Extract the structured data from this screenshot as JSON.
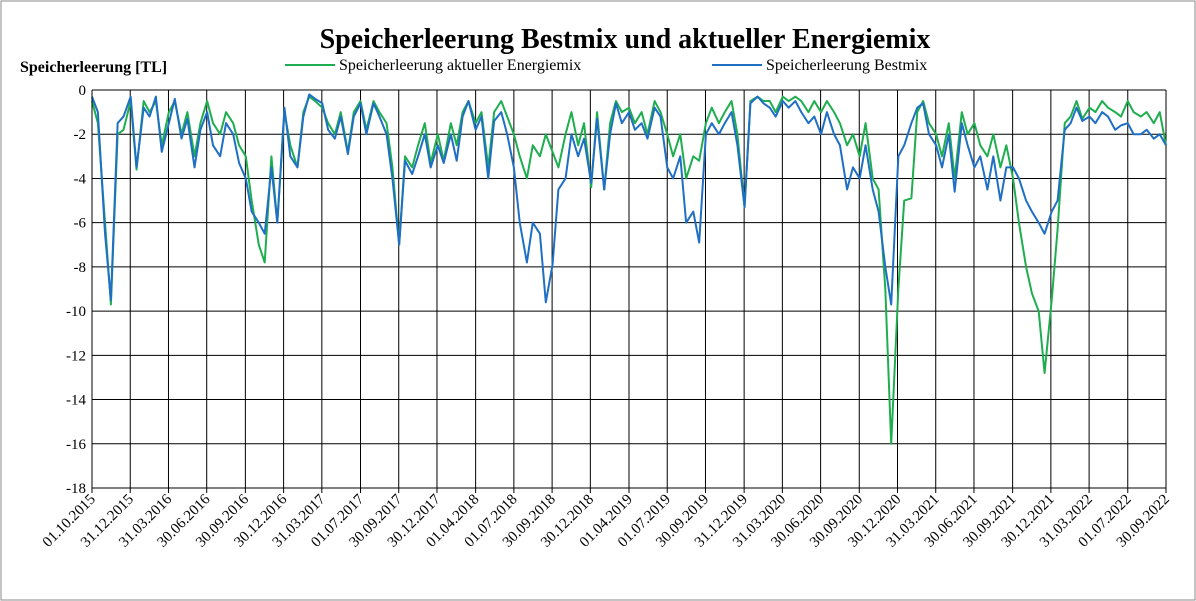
{
  "chart_data": {
    "type": "line",
    "title": "Speicherleerung Bestmix und aktueller Energiemix",
    "y_label": "Speicherleerung [TL]",
    "legend": "top",
    "grid": true,
    "ylim": [
      -18,
      0
    ],
    "yticks": [
      -18,
      -16,
      -14,
      -12,
      -10,
      -8,
      -6,
      -4,
      -2,
      0
    ],
    "xlim": [
      "01.10.2015",
      "30.09.2022"
    ],
    "xticks": [
      "01.10.2015",
      "31.12.2015",
      "31.03.2016",
      "30.06.2016",
      "30.09.2016",
      "30.12.2016",
      "31.03.2017",
      "01.07.2017",
      "30.09.2017",
      "30.12.2017",
      "01.04.2018",
      "01.07.2018",
      "30.09.2018",
      "30.12.2018",
      "01.04.2019",
      "01.07.2019",
      "30.09.2019",
      "31.12.2019",
      "31.03.2020",
      "30.06.2020",
      "30.09.2020",
      "30.12.2020",
      "31.03.2021",
      "30.06.2021",
      "30.09.2021",
      "30.12.2021",
      "31.03.2022",
      "01.07.2022",
      "30.09.2022"
    ],
    "x": [
      "01.10.2015",
      "15.10.2015",
      "01.11.2015",
      "15.11.2015",
      "01.12.2015",
      "15.12.2015",
      "01.01.2016",
      "15.01.2016",
      "01.02.2016",
      "15.02.2016",
      "01.03.2016",
      "15.03.2016",
      "01.04.2016",
      "15.04.2016",
      "01.05.2016",
      "15.05.2016",
      "01.06.2016",
      "15.06.2016",
      "01.07.2016",
      "15.07.2016",
      "01.08.2016",
      "15.08.2016",
      "01.09.2016",
      "15.09.2016",
      "01.10.2016",
      "15.10.2016",
      "01.11.2016",
      "15.11.2016",
      "01.12.2016",
      "15.12.2016",
      "01.01.2017",
      "15.01.2017",
      "01.02.2017",
      "15.02.2017",
      "01.03.2017",
      "15.03.2017",
      "01.04.2017",
      "15.04.2017",
      "01.05.2017",
      "15.05.2017",
      "01.06.2017",
      "15.06.2017",
      "01.07.2017",
      "15.07.2017",
      "01.08.2017",
      "15.08.2017",
      "01.09.2017",
      "15.09.2017",
      "01.10.2017",
      "15.10.2017",
      "01.11.2017",
      "15.11.2017",
      "01.12.2017",
      "15.12.2017",
      "01.01.2018",
      "15.01.2018",
      "01.02.2018",
      "15.02.2018",
      "01.03.2018",
      "15.03.2018",
      "01.04.2018",
      "15.04.2018",
      "01.05.2018",
      "15.05.2018",
      "01.06.2018",
      "15.06.2018",
      "01.07.2018",
      "15.07.2018",
      "01.08.2018",
      "15.08.2018",
      "01.09.2018",
      "15.09.2018",
      "01.10.2018",
      "15.10.2018",
      "01.11.2018",
      "15.11.2018",
      "01.12.2018",
      "15.12.2018",
      "01.01.2019",
      "15.01.2019",
      "01.02.2019",
      "15.02.2019",
      "01.03.2019",
      "15.03.2019",
      "01.04.2019",
      "15.04.2019",
      "01.05.2019",
      "15.05.2019",
      "01.06.2019",
      "15.06.2019",
      "01.07.2019",
      "15.07.2019",
      "01.08.2019",
      "15.08.2019",
      "01.09.2019",
      "15.09.2019",
      "01.10.2019",
      "15.10.2019",
      "01.11.2019",
      "15.11.2019",
      "01.12.2019",
      "15.12.2019",
      "01.01.2020",
      "15.01.2020",
      "01.02.2020",
      "15.02.2020",
      "01.03.2020",
      "15.03.2020",
      "01.04.2020",
      "15.04.2020",
      "01.05.2020",
      "15.05.2020",
      "01.06.2020",
      "15.06.2020",
      "01.07.2020",
      "15.07.2020",
      "01.08.2020",
      "15.08.2020",
      "01.09.2020",
      "15.09.2020",
      "01.10.2020",
      "15.10.2020",
      "01.11.2020",
      "15.11.2020",
      "01.12.2020",
      "15.12.2020",
      "01.01.2021",
      "15.01.2021",
      "01.02.2021",
      "15.02.2021",
      "01.03.2021",
      "15.03.2021",
      "01.04.2021",
      "15.04.2021",
      "01.05.2021",
      "15.05.2021",
      "01.06.2021",
      "15.06.2021",
      "01.07.2021",
      "15.07.2021",
      "01.08.2021",
      "15.08.2021",
      "01.09.2021",
      "15.09.2021",
      "01.10.2021",
      "15.10.2021",
      "01.11.2021",
      "15.11.2021",
      "01.12.2021",
      "15.12.2021",
      "01.01.2022",
      "15.01.2022",
      "01.02.2022",
      "15.02.2022",
      "01.03.2022",
      "15.03.2022",
      "01.04.2022",
      "15.04.2022",
      "01.05.2022",
      "15.05.2022",
      "01.06.2022",
      "15.06.2022",
      "01.07.2022",
      "15.07.2022",
      "01.08.2022",
      "15.08.2022",
      "01.09.2022",
      "15.09.2022",
      "30.09.2022"
    ],
    "series": [
      {
        "name": "Speicherleerung aktueller Energiemix",
        "color": "#1fae4f",
        "values": [
          -0.5,
          -1.5,
          -6,
          -9.7,
          -2,
          -1.8,
          -0.5,
          -3.6,
          -0.5,
          -1,
          -0.5,
          -2.5,
          -1,
          -0.5,
          -2,
          -1,
          -3,
          -1.5,
          -0.5,
          -1.5,
          -2,
          -1,
          -1.5,
          -2.5,
          -3,
          -5,
          -7,
          -7.8,
          -3,
          -6,
          -1,
          -2.5,
          -3.5,
          -1,
          -0.3,
          -0.5,
          -0.8,
          -1.5,
          -2,
          -1,
          -2.8,
          -1,
          -0.5,
          -1.8,
          -0.5,
          -1,
          -1.5,
          -3.5,
          -7,
          -3,
          -3.5,
          -2.5,
          -1.5,
          -3.3,
          -2,
          -3.2,
          -1.5,
          -2.5,
          -1,
          -0.5,
          -1.5,
          -1,
          -3.5,
          -1,
          -0.5,
          -1.2,
          -2,
          -3,
          -4,
          -2.5,
          -3,
          -2,
          -2.8,
          -3.5,
          -2,
          -1,
          -2.5,
          -1.5,
          -4.4,
          -1,
          -4.5,
          -1.5,
          -0.5,
          -1,
          -0.8,
          -1.5,
          -1,
          -2,
          -0.5,
          -1,
          -2,
          -3,
          -2,
          -4,
          -3,
          -3.2,
          -1.5,
          -0.8,
          -1.5,
          -1,
          -0.5,
          -2,
          -5.3,
          -0.5,
          -0.3,
          -0.5,
          -0.5,
          -1,
          -0.3,
          -0.5,
          -0.3,
          -0.5,
          -1,
          -0.5,
          -1,
          -0.5,
          -1,
          -1.5,
          -2.5,
          -2,
          -3,
          -1.5,
          -4,
          -4.5,
          -9,
          -16,
          -9,
          -5,
          -4.9,
          -1,
          -0.5,
          -1.5,
          -2,
          -3,
          -1.5,
          -4,
          -1,
          -2,
          -1.5,
          -2.5,
          -3,
          -2,
          -3.5,
          -2.5,
          -4,
          -6,
          -8,
          -9.2,
          -10,
          -12.8,
          -9.5,
          -6.3,
          -1.5,
          -1.2,
          -0.5,
          -1.3,
          -0.8,
          -1,
          -0.5,
          -0.8,
          -1,
          -1.2,
          -0.5,
          -1,
          -1.2,
          -1,
          -1.5,
          -1,
          -2.5
        ]
      },
      {
        "name": "Speicherleerung Bestmix",
        "color": "#1f6fc5",
        "values": [
          -0.3,
          -1,
          -6.5,
          -9.5,
          -1.5,
          -1.2,
          -0.3,
          -3.5,
          -0.8,
          -1.2,
          -0.3,
          -2.8,
          -1.5,
          -0.4,
          -2.2,
          -1.3,
          -3.5,
          -1.8,
          -1,
          -2.5,
          -3,
          -1.5,
          -2,
          -3.3,
          -4,
          -5.5,
          -6,
          -6.5,
          -3.5,
          -6,
          -0.8,
          -3,
          -3.5,
          -1.2,
          -0.2,
          -0.4,
          -0.6,
          -1.8,
          -2.2,
          -1.2,
          -2.9,
          -1.2,
          -0.6,
          -2,
          -0.6,
          -1.2,
          -2,
          -4,
          -7,
          -3.2,
          -3.8,
          -3,
          -2,
          -3.5,
          -2.5,
          -3.3,
          -2,
          -3.2,
          -1.2,
          -0.5,
          -1.8,
          -1.2,
          -4,
          -1.4,
          -1,
          -2,
          -3.5,
          -6,
          -7.8,
          -6,
          -6.5,
          -9.6,
          -7.9,
          -4.5,
          -4,
          -2,
          -3,
          -2.2,
          -4.2,
          -1.3,
          -4.5,
          -2,
          -0.6,
          -1.5,
          -1,
          -1.8,
          -1.5,
          -2.2,
          -0.8,
          -1.2,
          -3.5,
          -4,
          -3,
          -6,
          -5.5,
          -6.9,
          -2,
          -1.5,
          -2,
          -1.5,
          -1,
          -2.5,
          -5.3,
          -0.6,
          -0.3,
          -0.6,
          -0.8,
          -1.2,
          -0.5,
          -0.8,
          -0.5,
          -1,
          -1.5,
          -1.2,
          -2,
          -1,
          -2,
          -2.5,
          -4.5,
          -3.5,
          -4,
          -2.5,
          -4.5,
          -5.5,
          -8,
          -9.7,
          -3,
          -2.5,
          -1.5,
          -0.8,
          -0.6,
          -2,
          -2.5,
          -3.5,
          -2,
          -4.6,
          -1.5,
          -2.5,
          -3.5,
          -3,
          -4.5,
          -3,
          -5,
          -3.5,
          -3.5,
          -4,
          -5,
          -5.5,
          -6,
          -6.5,
          -5.5,
          -5,
          -1.8,
          -1.5,
          -0.8,
          -1.4,
          -1.2,
          -1.5,
          -1,
          -1.2,
          -1.8,
          -1.6,
          -1.5,
          -2,
          -2,
          -1.8,
          -2.2,
          -2,
          -2.5
        ]
      }
    ]
  }
}
